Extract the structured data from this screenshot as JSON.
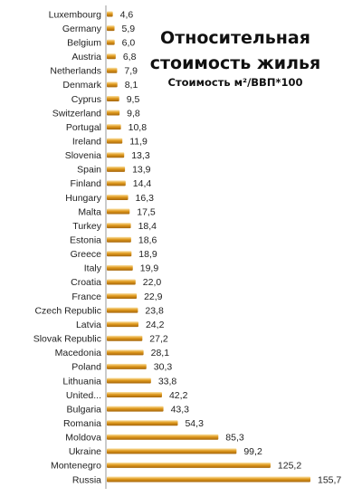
{
  "chart_data": {
    "type": "bar",
    "orientation": "horizontal",
    "title_line1": "Относительная",
    "title_line2": "стоимость жилья",
    "subtitle": "Стоимость м²/ВВП*100",
    "categories": [
      "Luxembourg",
      "Germany",
      "Belgium",
      "Austria",
      "Netherlands",
      "Denmark",
      "Cyprus",
      "Switzerland",
      "Portugal",
      "Ireland",
      "Slovenia",
      "Spain",
      "Finland",
      "Hungary",
      "Malta",
      "Turkey",
      "Estonia",
      "Greece",
      "Italy",
      "Croatia",
      "France",
      "Czech Republic",
      "Latvia",
      "Slovak Republic",
      "Macedonia",
      "Poland",
      "Lithuania",
      "United...",
      "Bulgaria",
      "Romania",
      "Moldova",
      "Ukraine",
      "Montenegro",
      "Russia"
    ],
    "values": [
      4.6,
      5.9,
      6.0,
      6.8,
      7.9,
      8.1,
      9.5,
      9.8,
      10.8,
      11.9,
      13.3,
      13.9,
      14.4,
      16.3,
      17.5,
      18.4,
      18.6,
      18.9,
      19.9,
      22.0,
      22.9,
      23.8,
      24.2,
      27.2,
      28.1,
      30.3,
      33.8,
      42.2,
      43.3,
      54.3,
      85.3,
      99.2,
      125.2,
      155.7
    ],
    "value_labels": [
      "4,6",
      "5,9",
      "6,0",
      "6,8",
      "7,9",
      "8,1",
      "9,5",
      "9,8",
      "10,8",
      "11,9",
      "13,3",
      "13,9",
      "14,4",
      "16,3",
      "17,5",
      "18,4",
      "18,6",
      "18,9",
      "19,9",
      "22,0",
      "22,9",
      "23,8",
      "24,2",
      "27,2",
      "28,1",
      "30,3",
      "33,8",
      "42,2",
      "43,3",
      "54,3",
      "85,3",
      "99,2",
      "125,2",
      "155,7"
    ],
    "xlim": [
      0,
      155.7
    ],
    "grid": false,
    "legend": "none",
    "bar_color": "#e09a1e",
    "bar_highlight": "#fbe2a6",
    "bar_shadow": "#a5650a"
  }
}
